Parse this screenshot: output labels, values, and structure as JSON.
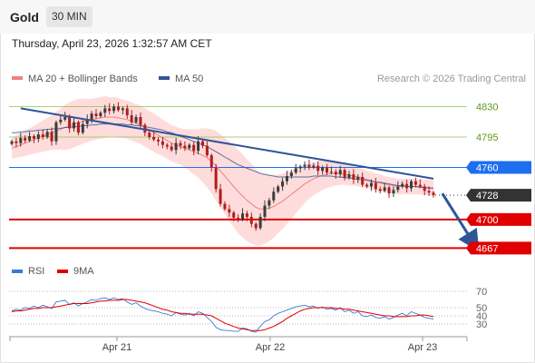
{
  "header": {
    "symbol": "Gold",
    "period": "30 MIN",
    "timestamp": "Thursday, April 23, 2026 1:32:57 AM CET"
  },
  "colors": {
    "up_candle": "#3c3c3c",
    "down_candle": "#b01e1e",
    "bollinger_fill": "#ffd6d6",
    "ma20": "#f08080",
    "ma50": "#2f5597",
    "trendline": "#2f5597",
    "resistance": "#8bc34a",
    "pivot": "#1e6ff0",
    "support": "#e00000",
    "rsi": "#3a7ad5",
    "rsi_ma": "#e00000"
  },
  "chart_data": [
    {
      "type": "candlestick",
      "title": "",
      "legend": [
        {
          "name": "MA 20 + Bollinger Bands",
          "color": "#f08080"
        },
        {
          "name": "MA 50",
          "color": "#2f5597"
        }
      ],
      "legend_placement": "top-left",
      "source": "Research © 2026 Trading Central",
      "x_tick_labels": [
        "Apr 21",
        "Apr 22",
        "Apr 23"
      ],
      "ylim": [
        4660,
        4860
      ],
      "levels": [
        {
          "value": 4830,
          "label": "4830",
          "kind": "resistance"
        },
        {
          "value": 4795,
          "label": "4795",
          "kind": "resistance"
        },
        {
          "value": 4760,
          "label": "4760",
          "kind": "pivot"
        },
        {
          "value": 4728,
          "label": "4728",
          "kind": "last"
        },
        {
          "value": 4700,
          "label": "4700",
          "kind": "support"
        },
        {
          "value": 4667,
          "label": "4667",
          "kind": "support"
        }
      ],
      "trendline": {
        "from": {
          "bar": 2,
          "value": 4828
        },
        "to": {
          "bar": 95,
          "value": 4747
        }
      },
      "arrow": {
        "from": {
          "bar": 97,
          "value": 4730
        },
        "to": {
          "bar": 104,
          "value": 4667
        }
      },
      "close_series": [
        4790,
        4788,
        4794,
        4791,
        4796,
        4793,
        4798,
        4795,
        4801,
        4790,
        4812,
        4815,
        4818,
        4805,
        4812,
        4800,
        4810,
        4815,
        4822,
        4819,
        4823,
        4828,
        4825,
        4830,
        4826,
        4828,
        4820,
        4812,
        4818,
        4809,
        4800,
        4795,
        4792,
        4790,
        4786,
        4784,
        4780,
        4788,
        4785,
        4782,
        4786,
        4779,
        4790,
        4785,
        4774,
        4760,
        4735,
        4718,
        4712,
        4708,
        4702,
        4700,
        4707,
        4703,
        4695,
        4690,
        4703,
        4716,
        4722,
        4732,
        4738,
        4744,
        4750,
        4754,
        4759,
        4761,
        4763,
        4760,
        4762,
        4756,
        4760,
        4754,
        4755,
        4752,
        4757,
        4748,
        4752,
        4746,
        4749,
        4740,
        4738,
        4742,
        4735,
        4733,
        4737,
        4730,
        4734,
        4738,
        4741,
        4736,
        4744,
        4740,
        4738,
        4733,
        4731,
        4728
      ],
      "ma20_series": [
        4782,
        4784,
        4786,
        4788,
        4790,
        4792,
        4794,
        4796,
        4798,
        4800,
        4802,
        4804,
        4806,
        4808,
        4810,
        4812,
        4813,
        4814,
        4815,
        4816,
        4817,
        4818,
        4818,
        4818,
        4817,
        4816,
        4815,
        4813,
        4811,
        4809,
        4806,
        4803,
        4800,
        4797,
        4794,
        4791,
        4788,
        4786,
        4784,
        4782,
        4780,
        4778,
        4776,
        4774,
        4771,
        4767,
        4762,
        4756,
        4750,
        4744,
        4738,
        4732,
        4727,
        4722,
        4718,
        4714,
        4712,
        4712,
        4713,
        4715,
        4718,
        4721,
        4725,
        4729,
        4733,
        4737,
        4741,
        4744,
        4747,
        4749,
        4751,
        4752,
        4753,
        4753,
        4753,
        4752,
        4751,
        4750,
        4749,
        4748,
        4746,
        4745,
        4743,
        4742,
        4741,
        4740,
        4739,
        4738,
        4738,
        4738,
        4738,
        4738,
        4738,
        4737,
        4737,
        4736
      ],
      "ma50_series": [
        4800,
        4800,
        4801,
        4801,
        4802,
        4802,
        4803,
        4803,
        4804,
        4804,
        4805,
        4805,
        4806,
        4806,
        4807,
        4807,
        4808,
        4808,
        4809,
        4809,
        4810,
        4810,
        4810,
        4810,
        4810,
        4810,
        4809,
        4809,
        4808,
        4808,
        4807,
        4806,
        4805,
        4804,
        4803,
        4801,
        4800,
        4798,
        4796,
        4794,
        4792,
        4790,
        4788,
        4786,
        4784,
        4781,
        4778,
        4775,
        4772,
        4769,
        4766,
        4763,
        4761,
        4759,
        4757,
        4755,
        4753,
        4752,
        4751,
        4750,
        4749,
        4749,
        4749,
        4749,
        4749,
        4749,
        4749,
        4749,
        4750,
        4750,
        4750,
        4750,
        4750,
        4749,
        4749,
        4748,
        4748,
        4747,
        4746,
        4746,
        4745,
        4744,
        4743,
        4743,
        4742,
        4741,
        4740,
        4739,
        4739,
        4738,
        4738,
        4738,
        4737,
        4737,
        4736,
        4736
      ],
      "band_width_series": [
        12,
        13,
        14,
        15,
        15,
        16,
        17,
        18,
        19,
        20,
        22,
        24,
        26,
        27,
        27,
        27,
        26,
        25,
        24,
        24,
        24,
        24,
        23,
        23,
        23,
        22,
        22,
        22,
        22,
        22,
        22,
        22,
        22,
        22,
        21,
        21,
        21,
        21,
        21,
        22,
        24,
        26,
        28,
        31,
        34,
        37,
        40,
        42,
        44,
        46,
        47,
        48,
        48,
        47,
        46,
        44,
        42,
        40,
        38,
        36,
        34,
        32,
        30,
        28,
        26,
        24,
        22,
        20,
        19,
        18,
        17,
        16,
        15,
        14,
        13,
        12,
        12,
        11,
        11,
        10,
        10,
        10,
        10,
        10,
        9,
        9,
        9,
        9,
        9,
        9,
        9,
        9,
        9,
        9,
        9,
        9
      ]
    },
    {
      "type": "line",
      "title": "",
      "legend": [
        {
          "name": "RSI",
          "color": "#3a7ad5"
        },
        {
          "name": "9MA",
          "color": "#e00000"
        }
      ],
      "legend_placement": "top-left",
      "ylim": [
        20,
        78
      ],
      "y_ticks": [
        70,
        50,
        40,
        30
      ],
      "rsi_series": [
        46,
        48,
        47,
        50,
        49,
        52,
        50,
        53,
        51,
        49,
        57,
        58,
        59,
        54,
        56,
        52,
        55,
        57,
        60,
        59,
        61,
        62,
        60,
        62,
        60,
        61,
        57,
        54,
        56,
        52,
        49,
        47,
        46,
        45,
        43,
        42,
        40,
        44,
        42,
        41,
        43,
        40,
        45,
        43,
        38,
        33,
        26,
        23,
        22,
        22,
        21,
        21,
        25,
        24,
        21,
        20,
        27,
        33,
        35,
        40,
        43,
        45,
        47,
        49,
        51,
        52,
        53,
        51,
        52,
        49,
        51,
        48,
        49,
        47,
        50,
        45,
        47,
        43,
        45,
        40,
        39,
        41,
        38,
        37,
        39,
        36,
        38,
        41,
        43,
        40,
        45,
        43,
        41,
        38,
        37,
        36
      ],
      "rsi_ma_series": [
        45,
        46,
        46,
        47,
        48,
        49,
        49,
        50,
        50,
        50,
        51,
        52,
        53,
        54,
        55,
        55,
        55,
        55,
        56,
        57,
        58,
        58,
        59,
        59,
        59,
        60,
        60,
        59,
        58,
        57,
        56,
        54,
        52,
        50,
        48,
        47,
        45,
        44,
        43,
        43,
        42,
        42,
        42,
        42,
        41,
        40,
        37,
        34,
        31,
        29,
        27,
        25,
        24,
        23,
        22,
        22,
        22,
        23,
        25,
        27,
        30,
        33,
        37,
        40,
        43,
        46,
        48,
        49,
        50,
        50,
        50,
        50,
        50,
        49,
        49,
        48,
        48,
        47,
        46,
        45,
        44,
        43,
        42,
        41,
        40,
        40,
        39,
        39,
        39,
        39,
        40,
        40,
        41,
        41,
        40,
        39
      ]
    }
  ]
}
